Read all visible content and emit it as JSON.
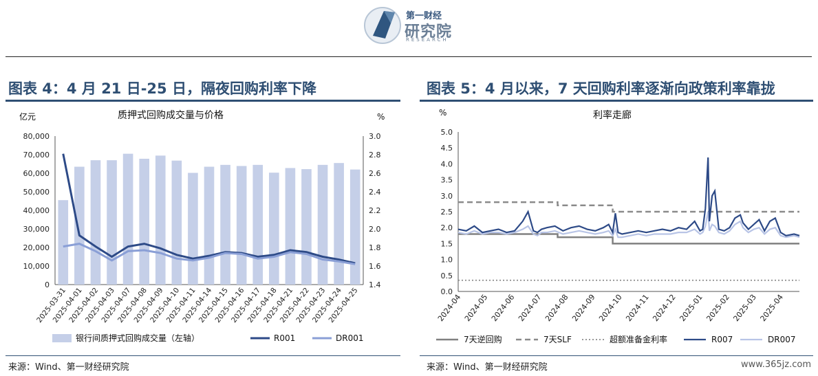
{
  "header": {
    "logo_line1": "第一财经",
    "logo_line2": "研究院",
    "logo_line3": "RESEARCH"
  },
  "left": {
    "figure_title": "图表 4：4 月 21 日-25 日，隔夜回购利率下降",
    "source": "来源：Wind、第一财经研究院"
  },
  "right": {
    "figure_title": "图表 5：4 月以来，7 天回购利率逐渐向政策利率靠拢",
    "source": "来源：Wind、第一财经研究院"
  },
  "watermark": "www.365jz.com",
  "colors": {
    "bar": "#c5cfe8",
    "r001": "#2d4a87",
    "dr001": "#8a9fd6",
    "reverse_repo": "#808080",
    "slf": "#8a8a8a",
    "excess_reserve": "#8a8a8a",
    "r007": "#2d4a87",
    "dr007": "#b8c4e6",
    "title_blue": "#2f4f73"
  },
  "chart_data": [
    {
      "type": "bar+line",
      "title": "质押式回购成交量与价格",
      "ylabel_left": "亿元",
      "ylabel_right": "%",
      "ylim_left": [
        0,
        80000
      ],
      "yticks_left": [
        "0",
        "10,000",
        "20,000",
        "30,000",
        "40,000",
        "50,000",
        "60,000",
        "70,000",
        "80,000"
      ],
      "ylim_right": [
        1.4,
        3.0
      ],
      "yticks_right": [
        "1.4",
        "1.6",
        "1.8",
        "2.0",
        "2.2",
        "2.4",
        "2.6",
        "2.8",
        "3.0"
      ],
      "categories": [
        "2025-03-31",
        "2025-04-01",
        "2025-04-02",
        "2025-04-03",
        "2025-04-07",
        "2025-04-08",
        "2025-04-09",
        "2025-04-10",
        "2025-04-11",
        "2025-04-14",
        "2025-04-15",
        "2025-04-16",
        "2025-04-17",
        "2025-04-18",
        "2025-04-21",
        "2025-04-22",
        "2025-04-23",
        "2025-04-24",
        "2025-04-25"
      ],
      "bars": {
        "name": "银行间质押式回购成交量（左轴）",
        "values": [
          45500,
          63500,
          67000,
          67000,
          70500,
          67800,
          69500,
          66800,
          60200,
          63500,
          64500,
          63900,
          64500,
          60300,
          62800,
          62200,
          64500,
          65500,
          62000
        ]
      },
      "series": [
        {
          "name": "R001",
          "values": [
            2.81,
            1.93,
            1.81,
            1.7,
            1.81,
            1.84,
            1.79,
            1.72,
            1.68,
            1.71,
            1.75,
            1.74,
            1.7,
            1.72,
            1.77,
            1.75,
            1.7,
            1.67,
            1.63
          ]
        },
        {
          "name": "DR001",
          "values": [
            1.81,
            1.84,
            1.76,
            1.66,
            1.76,
            1.77,
            1.74,
            1.68,
            1.66,
            1.69,
            1.74,
            1.73,
            1.68,
            1.7,
            1.75,
            1.73,
            1.67,
            1.65,
            1.62
          ]
        }
      ]
    },
    {
      "type": "line",
      "title": "利率走廊",
      "ylabel": "%",
      "ylim": [
        0,
        5.0
      ],
      "yticks": [
        "0.0",
        "0.5",
        "1.0",
        "1.5",
        "2.0",
        "2.5",
        "3.0",
        "3.5",
        "4.0",
        "4.5",
        "5.0"
      ],
      "x_ticks": [
        "2024-04",
        "2024-05",
        "2024-06",
        "2024-07",
        "2024-08",
        "2024-09",
        "2024-10",
        "2024-11",
        "2024-12",
        "2025-01",
        "2025-02",
        "2025-03",
        "2025-04"
      ],
      "series": [
        {
          "name": "7天逆回购",
          "style": "solid",
          "x": [
            0,
            3.7,
            3.7,
            5.75,
            5.75,
            12.7
          ],
          "y": [
            1.8,
            1.8,
            1.7,
            1.7,
            1.5,
            1.5
          ]
        },
        {
          "name": "7天SLF",
          "style": "dashed",
          "x": [
            0,
            3.7,
            3.7,
            5.75,
            5.75,
            12.7
          ],
          "y": [
            2.8,
            2.8,
            2.7,
            2.7,
            2.5,
            2.5
          ]
        },
        {
          "name": "超额准备金利率",
          "style": "dotted",
          "x": [
            0,
            12.7
          ],
          "y": [
            0.35,
            0.35
          ]
        },
        {
          "name": "R007",
          "style": "solid",
          "x": [
            0,
            0.3,
            0.6,
            0.9,
            1.2,
            1.5,
            1.8,
            2.1,
            2.4,
            2.6,
            2.8,
            2.95,
            3.1,
            3.3,
            3.6,
            3.9,
            4.2,
            4.5,
            4.8,
            5.1,
            5.4,
            5.6,
            5.75,
            5.85,
            5.95,
            6.1,
            6.4,
            6.7,
            7.0,
            7.3,
            7.6,
            7.9,
            8.2,
            8.5,
            8.8,
            9.0,
            9.1,
            9.2,
            9.3,
            9.35,
            9.45,
            9.55,
            9.7,
            9.9,
            10.1,
            10.3,
            10.5,
            10.6,
            10.8,
            11.0,
            11.2,
            11.4,
            11.6,
            11.8,
            12.0,
            12.2,
            12.5,
            12.7
          ],
          "y": [
            1.95,
            1.9,
            2.05,
            1.85,
            1.9,
            1.95,
            1.85,
            1.9,
            2.2,
            2.5,
            1.9,
            1.85,
            1.95,
            2.0,
            2.05,
            1.9,
            2.0,
            2.05,
            1.95,
            1.9,
            2.0,
            2.1,
            1.85,
            2.45,
            1.85,
            1.8,
            1.85,
            1.9,
            1.85,
            1.9,
            1.95,
            1.9,
            2.0,
            1.95,
            2.2,
            1.9,
            1.95,
            2.6,
            4.2,
            2.2,
            3.0,
            3.15,
            1.95,
            1.9,
            2.0,
            2.3,
            2.4,
            2.15,
            1.95,
            2.1,
            2.25,
            1.9,
            2.2,
            2.3,
            1.85,
            1.75,
            1.8,
            1.75
          ]
        },
        {
          "name": "DR007",
          "style": "solid",
          "x": [
            0,
            0.3,
            0.6,
            0.9,
            1.2,
            1.5,
            1.8,
            2.1,
            2.4,
            2.6,
            2.8,
            2.95,
            3.1,
            3.3,
            3.6,
            3.9,
            4.2,
            4.5,
            4.8,
            5.1,
            5.4,
            5.6,
            5.75,
            5.85,
            5.95,
            6.1,
            6.4,
            6.7,
            7.0,
            7.3,
            7.6,
            7.9,
            8.2,
            8.5,
            8.8,
            9.0,
            9.1,
            9.2,
            9.3,
            9.35,
            9.45,
            9.55,
            9.7,
            9.9,
            10.1,
            10.3,
            10.5,
            10.6,
            10.8,
            11.0,
            11.2,
            11.4,
            11.6,
            11.8,
            12.0,
            12.2,
            12.5,
            12.7
          ],
          "y": [
            1.85,
            1.8,
            1.9,
            1.8,
            1.85,
            1.85,
            1.8,
            1.85,
            1.95,
            2.05,
            1.8,
            1.75,
            1.85,
            1.85,
            1.9,
            1.8,
            1.85,
            1.9,
            1.85,
            1.8,
            1.85,
            1.9,
            1.75,
            1.95,
            1.7,
            1.7,
            1.75,
            1.8,
            1.75,
            1.8,
            1.8,
            1.8,
            1.85,
            1.85,
            1.95,
            1.8,
            1.85,
            2.05,
            2.5,
            1.9,
            2.1,
            2.05,
            1.85,
            1.8,
            1.9,
            2.1,
            2.2,
            2.0,
            1.85,
            1.95,
            2.0,
            1.8,
            1.95,
            2.0,
            1.75,
            1.7,
            1.75,
            1.7
          ]
        }
      ]
    }
  ]
}
